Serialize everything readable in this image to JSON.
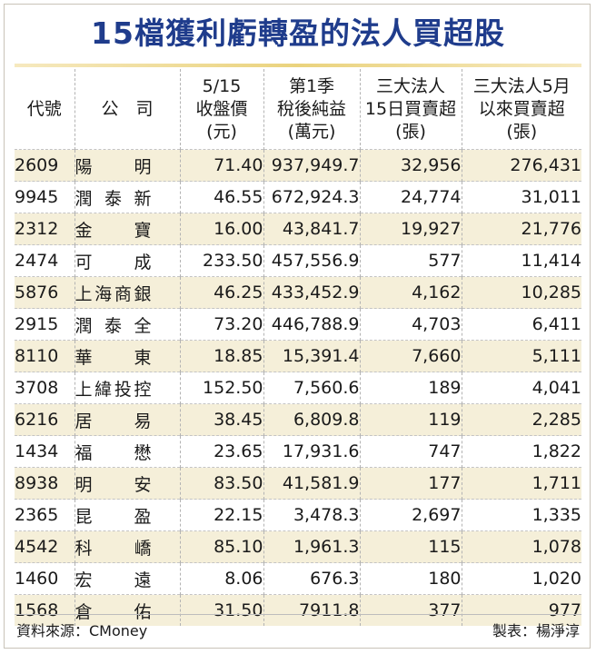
{
  "title": "15檔獲利虧轉盈的法人買超股",
  "headers": [
    [
      "代號"
    ],
    [
      "公　司"
    ],
    [
      "5/15",
      "收盤價",
      "(元)"
    ],
    [
      "第1季",
      "稅後純益",
      "(萬元)"
    ],
    [
      "三大法人",
      "15日買賣超",
      "(張)"
    ],
    [
      "三大法人5月",
      "以來買賣超",
      "(張)"
    ]
  ],
  "rows": [
    {
      "code": "2609",
      "company": "陽　明",
      "close": "71.40",
      "profit": "937,949.7",
      "day_net": "32,956",
      "month_net": "276,431"
    },
    {
      "code": "9945",
      "company": "潤泰新",
      "close": "46.55",
      "profit": "672,924.3",
      "day_net": "24,774",
      "month_net": "31,011"
    },
    {
      "code": "2312",
      "company": "金　寶",
      "close": "16.00",
      "profit": "43,841.7",
      "day_net": "19,927",
      "month_net": "21,776"
    },
    {
      "code": "2474",
      "company": "可　成",
      "close": "233.50",
      "profit": "457,556.9",
      "day_net": "577",
      "month_net": "11,414"
    },
    {
      "code": "5876",
      "company": "上海商銀",
      "close": "46.25",
      "profit": "433,452.9",
      "day_net": "4,162",
      "month_net": "10,285"
    },
    {
      "code": "2915",
      "company": "潤泰全",
      "close": "73.20",
      "profit": "446,788.9",
      "day_net": "4,703",
      "month_net": "6,411"
    },
    {
      "code": "8110",
      "company": "華　東",
      "close": "18.85",
      "profit": "15,391.4",
      "day_net": "7,660",
      "month_net": "5,111"
    },
    {
      "code": "3708",
      "company": "上緯投控",
      "close": "152.50",
      "profit": "7,560.6",
      "day_net": "189",
      "month_net": "4,041"
    },
    {
      "code": "6216",
      "company": "居　易",
      "close": "38.45",
      "profit": "6,809.8",
      "day_net": "119",
      "month_net": "2,285"
    },
    {
      "code": "1434",
      "company": "福　懋",
      "close": "23.65",
      "profit": "17,931.6",
      "day_net": "747",
      "month_net": "1,822"
    },
    {
      "code": "8938",
      "company": "明　安",
      "close": "83.50",
      "profit": "41,581.9",
      "day_net": "177",
      "month_net": "1,711"
    },
    {
      "code": "2365",
      "company": "昆　盈",
      "close": "22.15",
      "profit": "3,478.3",
      "day_net": "2,697",
      "month_net": "1,335"
    },
    {
      "code": "4542",
      "company": "科　嶠",
      "close": "85.10",
      "profit": "1,961.3",
      "day_net": "115",
      "month_net": "1,078"
    },
    {
      "code": "1460",
      "company": "宏　遠",
      "close": "8.06",
      "profit": "676.3",
      "day_net": "180",
      "month_net": "1,020"
    },
    {
      "code": "1568",
      "company": "倉　佑",
      "close": "31.50",
      "profit": "7911.8",
      "day_net": "377",
      "month_net": "977"
    }
  ],
  "source": "資料來源：CMoney",
  "credit": "製表：楊淨淳",
  "colors": {
    "title": "#1f3c8c",
    "band": "#f5efd9",
    "rule": "#ead37e"
  }
}
